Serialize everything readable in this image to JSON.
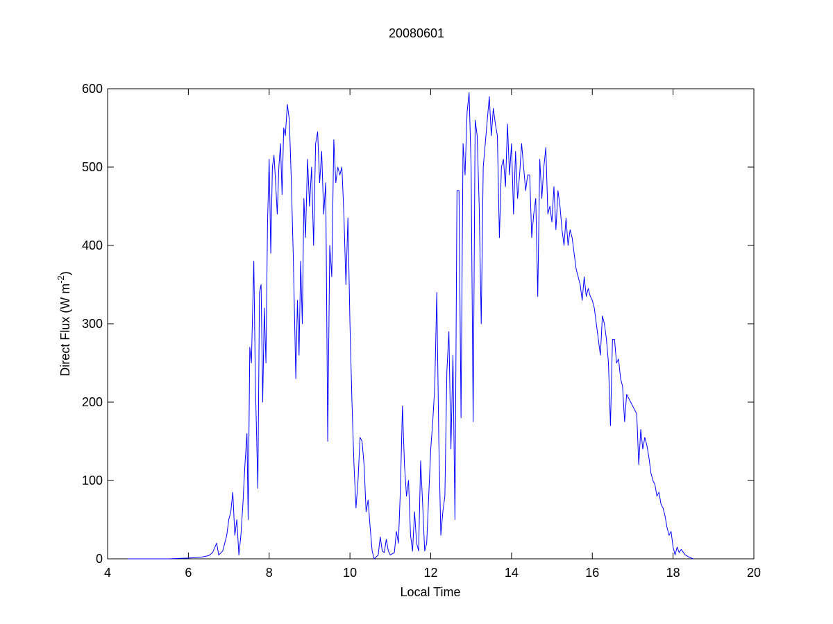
{
  "chart_data": {
    "type": "line",
    "title": "20080601",
    "xlabel": "Local Time",
    "ylabel": [
      "Direct Flux (W m",
      "-2",
      ")"
    ],
    "color": "#0000ff",
    "xlim": [
      4,
      20
    ],
    "xticks": [
      4,
      6,
      8,
      10,
      12,
      14,
      16,
      18,
      20
    ],
    "ylim": [
      0,
      600
    ],
    "yticks": [
      0,
      100,
      200,
      300,
      400,
      500,
      600
    ],
    "grid": false,
    "x": [
      4.5,
      5,
      5.5,
      6,
      6.3,
      6.5,
      6.6,
      6.7,
      6.75,
      6.85,
      6.95,
      7,
      7.05,
      7.1,
      7.15,
      7.2,
      7.25,
      7.3,
      7.35,
      7.4,
      7.45,
      7.48,
      7.52,
      7.56,
      7.62,
      7.66,
      7.72,
      7.76,
      7.8,
      7.84,
      7.88,
      7.92,
      7.96,
      8,
      8.04,
      8.08,
      8.12,
      8.16,
      8.2,
      8.24,
      8.28,
      8.32,
      8.36,
      8.4,
      8.45,
      8.5,
      8.55,
      8.6,
      8.66,
      8.7,
      8.74,
      8.78,
      8.82,
      8.86,
      8.9,
      8.95,
      9,
      9.05,
      9.1,
      9.15,
      9.2,
      9.25,
      9.3,
      9.35,
      9.4,
      9.45,
      9.5,
      9.55,
      9.6,
      9.65,
      9.7,
      9.75,
      9.8,
      9.85,
      9.9,
      9.95,
      10,
      10.05,
      10.1,
      10.15,
      10.2,
      10.25,
      10.3,
      10.35,
      10.4,
      10.45,
      10.5,
      10.55,
      10.6,
      10.7,
      10.75,
      10.8,
      10.85,
      10.9,
      10.95,
      11,
      11.1,
      11.15,
      11.2,
      11.25,
      11.3,
      11.35,
      11.4,
      11.45,
      11.5,
      11.55,
      11.6,
      11.65,
      11.7,
      11.75,
      11.8,
      11.85,
      11.9,
      11.95,
      12,
      12.05,
      12.1,
      12.15,
      12.2,
      12.25,
      12.3,
      12.35,
      12.4,
      12.45,
      12.5,
      12.55,
      12.6,
      12.65,
      12.7,
      12.75,
      12.8,
      12.85,
      12.9,
      12.95,
      13,
      13.05,
      13.1,
      13.15,
      13.2,
      13.25,
      13.3,
      13.35,
      13.4,
      13.45,
      13.5,
      13.55,
      13.6,
      13.65,
      13.7,
      13.75,
      13.8,
      13.85,
      13.9,
      13.95,
      14,
      14.05,
      14.1,
      14.15,
      14.2,
      14.25,
      14.3,
      14.35,
      14.4,
      14.45,
      14.5,
      14.55,
      14.6,
      14.65,
      14.7,
      14.75,
      14.8,
      14.85,
      14.9,
      14.95,
      15,
      15.05,
      15.1,
      15.15,
      15.2,
      15.25,
      15.3,
      15.35,
      15.4,
      15.45,
      15.5,
      15.55,
      15.6,
      15.65,
      15.7,
      15.75,
      15.8,
      15.85,
      15.9,
      15.95,
      16,
      16.05,
      16.1,
      16.15,
      16.2,
      16.25,
      16.3,
      16.35,
      16.4,
      16.45,
      16.5,
      16.55,
      16.6,
      16.65,
      16.7,
      16.75,
      16.8,
      16.85,
      16.9,
      17,
      17.1,
      17.15,
      17.2,
      17.25,
      17.3,
      17.35,
      17.4,
      17.45,
      17.5,
      17.55,
      17.6,
      17.65,
      17.7,
      17.75,
      17.8,
      17.85,
      17.9,
      17.95,
      18,
      18.05,
      18.1,
      18.15,
      18.2,
      18.3,
      18.4,
      18.5
    ],
    "values": [
      0,
      0,
      0,
      1,
      2,
      4,
      8,
      20,
      5,
      10,
      30,
      50,
      60,
      85,
      30,
      50,
      5,
      30,
      70,
      120,
      160,
      50,
      270,
      250,
      380,
      220,
      90,
      340,
      350,
      200,
      320,
      250,
      430,
      510,
      390,
      500,
      515,
      480,
      440,
      500,
      530,
      465,
      550,
      540,
      580,
      560,
      480,
      380,
      230,
      330,
      260,
      380,
      300,
      460,
      410,
      510,
      450,
      500,
      400,
      530,
      545,
      480,
      520,
      440,
      480,
      150,
      400,
      360,
      535,
      480,
      500,
      490,
      500,
      440,
      350,
      435,
      300,
      200,
      120,
      65,
      100,
      155,
      150,
      120,
      60,
      75,
      40,
      10,
      0,
      5,
      28,
      10,
      8,
      25,
      10,
      5,
      8,
      35,
      20,
      90,
      195,
      120,
      80,
      100,
      30,
      10,
      60,
      20,
      10,
      125,
      70,
      10,
      20,
      80,
      140,
      175,
      220,
      340,
      150,
      30,
      60,
      80,
      240,
      290,
      140,
      260,
      50,
      470,
      470,
      180,
      530,
      490,
      570,
      595,
      500,
      175,
      560,
      540,
      450,
      300,
      500,
      530,
      560,
      590,
      540,
      575,
      555,
      540,
      410,
      500,
      510,
      475,
      555,
      490,
      530,
      440,
      520,
      460,
      490,
      530,
      500,
      470,
      490,
      490,
      410,
      440,
      460,
      335,
      510,
      460,
      500,
      525,
      440,
      450,
      430,
      475,
      420,
      470,
      450,
      420,
      400,
      435,
      400,
      420,
      410,
      390,
      370,
      360,
      350,
      330,
      360,
      335,
      345,
      335,
      330,
      320,
      300,
      280,
      260,
      310,
      300,
      280,
      250,
      170,
      280,
      280,
      250,
      255,
      230,
      220,
      175,
      210,
      205,
      195,
      185,
      120,
      165,
      140,
      155,
      145,
      130,
      110,
      100,
      95,
      80,
      85,
      70,
      65,
      55,
      40,
      30,
      35,
      15,
      5,
      15,
      8,
      12,
      5,
      2,
      0
    ]
  }
}
